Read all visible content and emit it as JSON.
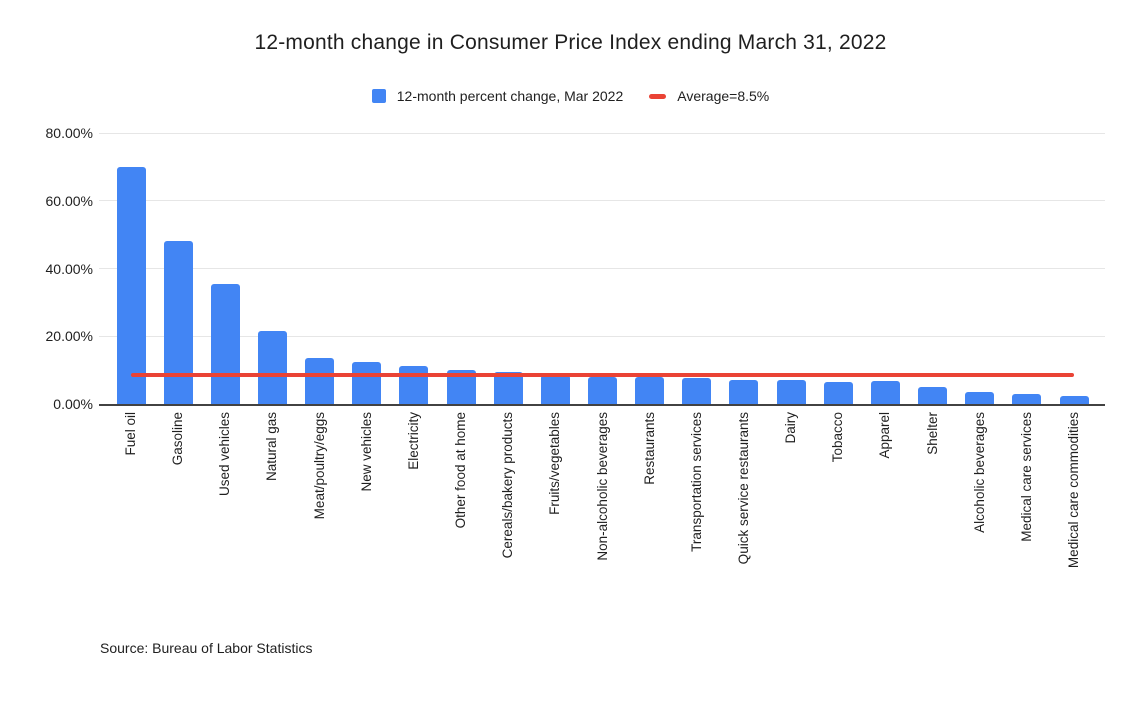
{
  "title": "12-month change in Consumer Price Index ending March 31, 2022",
  "legend": {
    "series": {
      "label": "12-month percent change, Mar 2022",
      "swatch_color": "#4285F4"
    },
    "average": {
      "label": "Average=8.5%",
      "swatch_color": "#EA4335"
    }
  },
  "source_note": "Source: Bureau of Labor Statistics",
  "colors": {
    "bar": "#4285F4",
    "average_line": "#EA4335",
    "gridline": "#e6e6e6",
    "axis_line": "#424242",
    "text": "#1f1f1f",
    "background": "#ffffff"
  },
  "chart_data": {
    "type": "bar",
    "title": "12-month change in Consumer Price Index ending March 31, 2022",
    "series_name": "12-month percent change, Mar 2022",
    "categories": [
      "Fuel oil",
      "Gasoline",
      "Used vehicles",
      "Natural gas",
      "Meat/poultry/eggs",
      "New vehicles",
      "Electricity",
      "Other food at home",
      "Cereals/bakery products",
      "Fruits/vegetables",
      "Non-alcoholic beverages",
      "Restaurants",
      "Transportation services",
      "Quick service restaurants",
      "Dairy",
      "Tobacco",
      "Apparel",
      "Shelter",
      "Alcoholic beverages",
      "Medical care services",
      "Medical care commodities"
    ],
    "values": [
      70.1,
      48.0,
      35.3,
      21.6,
      13.7,
      12.5,
      11.1,
      10.0,
      9.4,
      8.5,
      8.0,
      8.0,
      7.7,
      7.2,
      7.0,
      6.5,
      6.8,
      5.0,
      3.6,
      2.9,
      2.5
    ],
    "average_line": {
      "label": "Average=8.5%",
      "value": 8.5
    },
    "ylim": [
      0,
      80
    ],
    "y_ticks": [
      {
        "label": "0.00%",
        "value": 0
      },
      {
        "label": "20.00%",
        "value": 20
      },
      {
        "label": "40.00%",
        "value": 40
      },
      {
        "label": "60.00%",
        "value": 60
      },
      {
        "label": "80.00%",
        "value": 80
      }
    ],
    "xlabel": "",
    "ylabel": "",
    "grid": true,
    "legend_position": "top",
    "x_tick_rotation_deg": -90
  }
}
